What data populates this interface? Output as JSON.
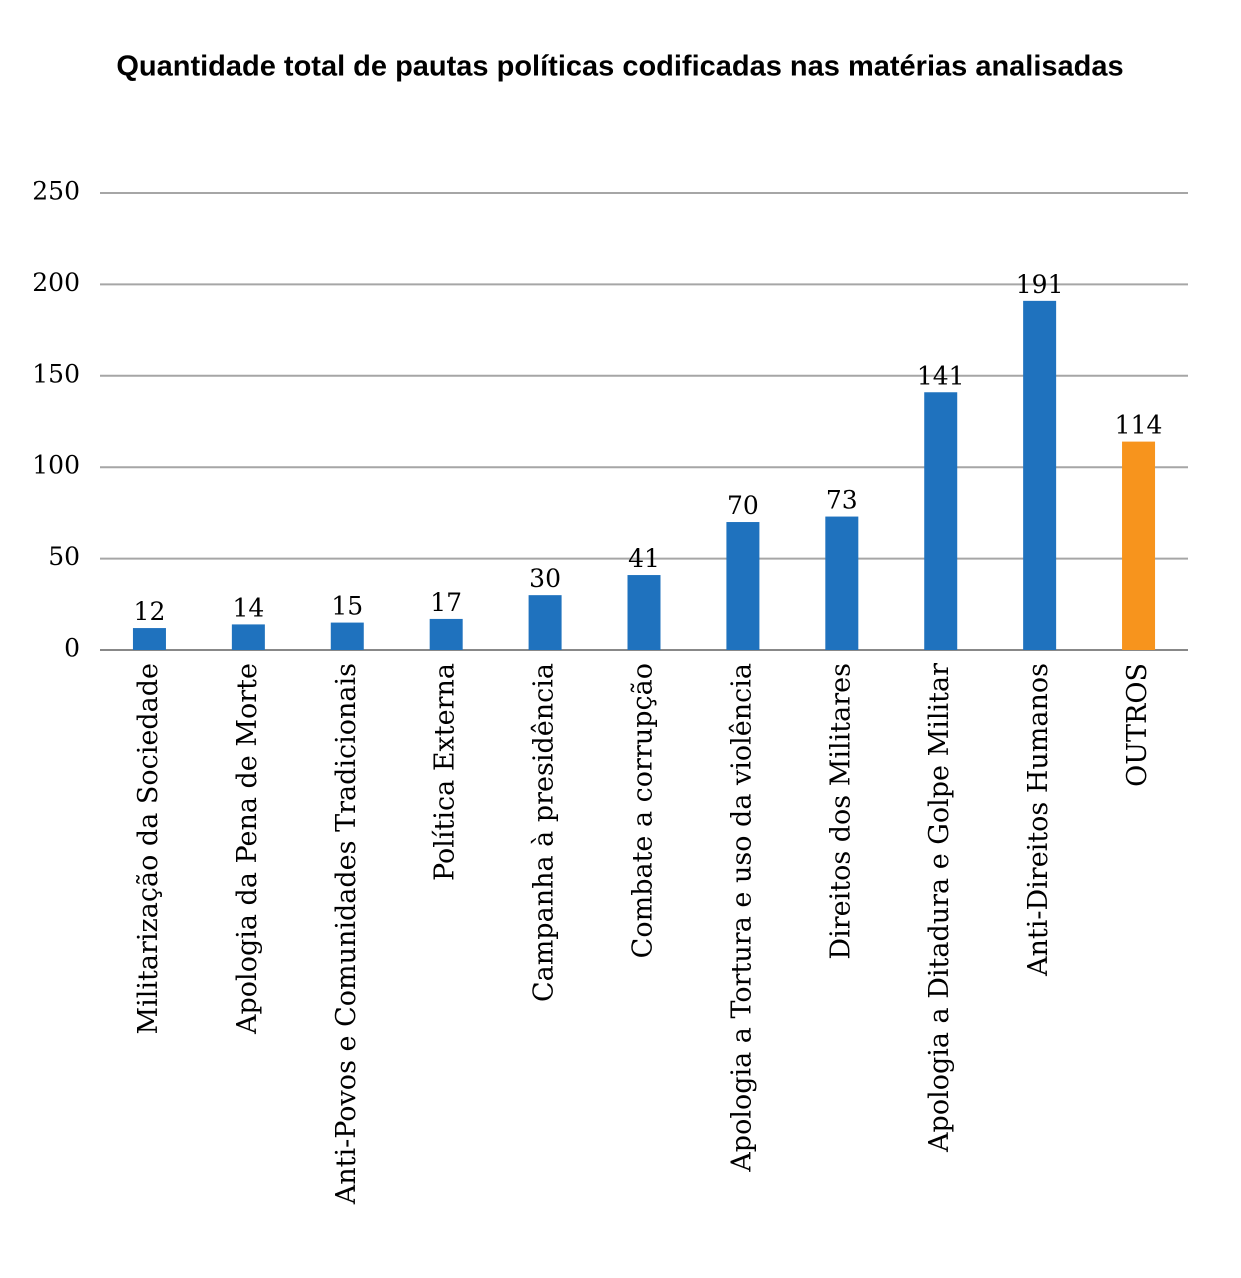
{
  "chart_data": {
    "type": "bar",
    "title": "Quantidade total de pautas políticas codificadas nas matérias analisadas",
    "categories": [
      "Militarização da Sociedade",
      "Apologia da Pena de Morte",
      "Anti-Povos e Comunidades Tradicionais",
      "Política Externa",
      "Campanha à presidência",
      "Combate a corrupção",
      "Apologia a Tortura e uso da violência",
      "Direitos dos Militares",
      "Apologia a Ditadura e Golpe Militar",
      "Anti-Direitos Humanos",
      "OUTROS"
    ],
    "values": [
      12,
      14,
      15,
      17,
      30,
      41,
      70,
      73,
      141,
      191,
      114
    ],
    "colors": [
      "#1f72be",
      "#1f72be",
      "#1f72be",
      "#1f72be",
      "#1f72be",
      "#1f72be",
      "#1f72be",
      "#1f72be",
      "#1f72be",
      "#1f72be",
      "#f7941d"
    ],
    "ylim": [
      0,
      250
    ],
    "yticks": [
      0,
      50,
      100,
      150,
      200,
      250
    ],
    "grid": true
  }
}
